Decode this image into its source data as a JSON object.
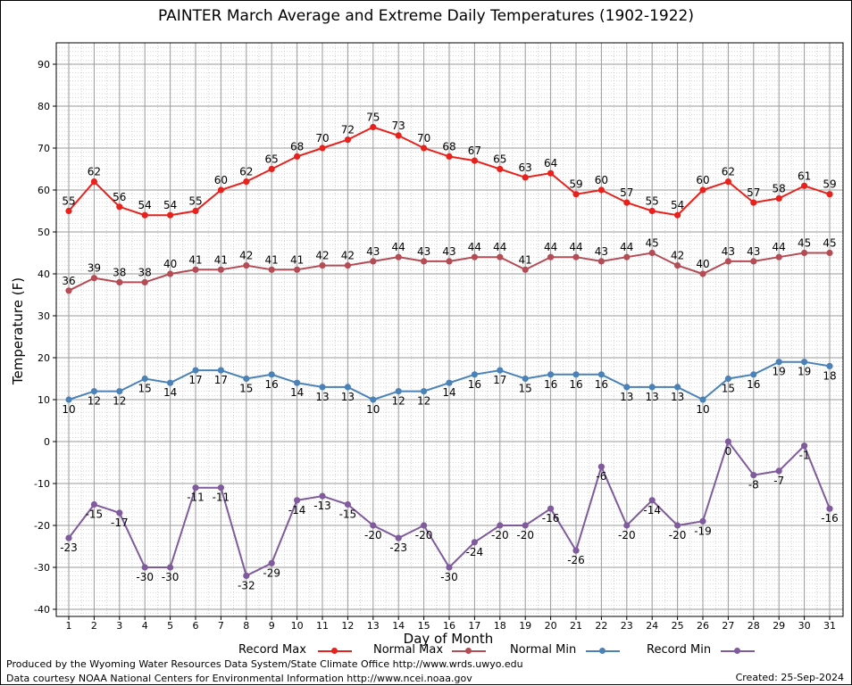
{
  "title": "PAINTER March Average and Extreme Daily Temperatures (1902-1922)",
  "footer": {
    "line1": "Produced by the Wyoming Water Resources Data System/State Climate Office http://www.wrds.uwyo.edu",
    "line2": "Data courtesy NOAA National Centers for Environmental Information http://www.ncei.noaa.gov",
    "created": "Created:  25-Sep-2024"
  },
  "legend": {
    "record_max": "Record Max",
    "normal_max": "Normal Max",
    "normal_min": "Normal Min",
    "record_min": "Record Min"
  },
  "chart_data": {
    "type": "line",
    "title": "PAINTER March Average and Extreme Daily Temperatures (1902-1922)",
    "xlabel": "Day of Month",
    "ylabel": "Temperature (F)",
    "ylim": [
      -40,
      90
    ],
    "y_ticks": [
      -40,
      -30,
      -20,
      -10,
      0,
      10,
      20,
      30,
      40,
      50,
      60,
      70,
      80,
      90
    ],
    "grid": true,
    "legend_position": "bottom",
    "x": [
      1,
      2,
      3,
      4,
      5,
      6,
      7,
      8,
      9,
      10,
      11,
      12,
      13,
      14,
      15,
      16,
      17,
      18,
      19,
      20,
      21,
      22,
      23,
      24,
      25,
      26,
      27,
      28,
      29,
      30,
      31
    ],
    "series": [
      {
        "name": "Record Max",
        "color": "#e8211c",
        "values": [
          55,
          62,
          56,
          54,
          54,
          55,
          60,
          62,
          65,
          68,
          70,
          72,
          75,
          73,
          70,
          68,
          67,
          65,
          63,
          64,
          59,
          60,
          57,
          55,
          54,
          60,
          62,
          57,
          58,
          61,
          59
        ]
      },
      {
        "name": "Normal Max",
        "color": "#b54c55",
        "values": [
          36,
          39,
          38,
          38,
          40,
          41,
          41,
          42,
          41,
          41,
          42,
          42,
          43,
          44,
          43,
          43,
          44,
          44,
          41,
          44,
          44,
          43,
          44,
          45,
          42,
          40,
          43,
          43,
          44,
          45,
          45
        ]
      },
      {
        "name": "Normal Min",
        "color": "#4a82b8",
        "values": [
          10,
          12,
          12,
          15,
          14,
          17,
          17,
          15,
          16,
          14,
          13,
          13,
          10,
          12,
          12,
          14,
          16,
          17,
          15,
          16,
          16,
          16,
          13,
          13,
          13,
          10,
          15,
          16,
          19,
          19,
          18
        ]
      },
      {
        "name": "Record Min",
        "color": "#7f5a9c",
        "values": [
          -23,
          -15,
          -17,
          -30,
          -30,
          -11,
          -11,
          -32,
          -29,
          -14,
          -13,
          -15,
          -20,
          -23,
          -20,
          -30,
          -24,
          -20,
          -20,
          -16,
          -26,
          -6,
          -20,
          -14,
          -20,
          -19,
          0,
          -8,
          -7,
          -1,
          -16
        ]
      }
    ]
  }
}
